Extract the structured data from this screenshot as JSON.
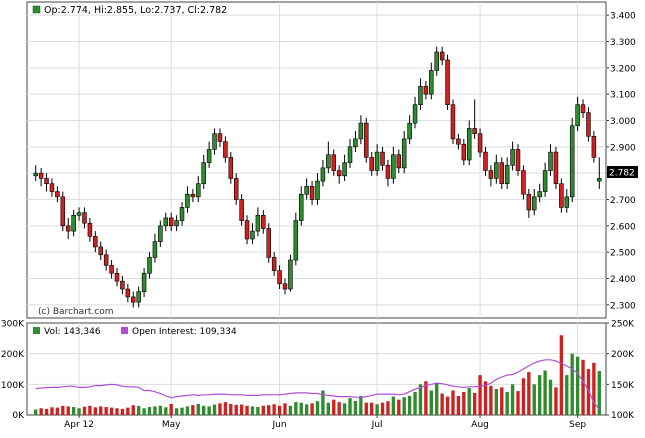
{
  "header": {
    "ohlc_text": "Op:2.774, Hi:2.855, Lo:2.737, Cl:2.782",
    "last_price": "2.782",
    "watermark": "(c) Barchart.com"
  },
  "volume_legend": {
    "vol_text": "Vol: 143,346",
    "oi_text": "Open Interest: 109,334"
  },
  "colors": {
    "up": "#2e8b2e",
    "down": "#cc2222",
    "wick": "#000000",
    "oi_line": "#b04fd6",
    "grid": "#dddddd",
    "frame": "#444444"
  },
  "chart_data": [
    {
      "type": "candlestick",
      "title": "",
      "x_tick_labels": [
        "Apr 12",
        "May",
        "Jun",
        "Jul",
        "Aug",
        "Sep"
      ],
      "x_tick_index": [
        8,
        25,
        45,
        63,
        82,
        100
      ],
      "y_ticks": [
        2.3,
        2.4,
        2.5,
        2.6,
        2.7,
        2.8,
        2.9,
        3.0,
        3.1,
        3.2,
        3.3,
        3.4
      ],
      "y_tick_labels": [
        "2.300",
        "2.400",
        "2.500",
        "2.600",
        "2.700",
        "2.800",
        "2.900",
        "3.000",
        "3.100",
        "3.200",
        "3.300",
        "3.400"
      ],
      "ylim": [
        2.25,
        3.45
      ],
      "grid": true,
      "close": [
        2.8,
        2.78,
        2.76,
        2.73,
        2.71,
        2.6,
        2.58,
        2.64,
        2.65,
        2.61,
        2.56,
        2.52,
        2.49,
        2.45,
        2.42,
        2.39,
        2.36,
        2.33,
        2.31,
        2.35,
        2.42,
        2.48,
        2.54,
        2.6,
        2.63,
        2.6,
        2.62,
        2.67,
        2.72,
        2.71,
        2.76,
        2.84,
        2.89,
        2.95,
        2.92,
        2.86,
        2.78,
        2.7,
        2.62,
        2.55,
        2.58,
        2.64,
        2.59,
        2.48,
        2.43,
        2.38,
        2.36,
        2.47,
        2.62,
        2.72,
        2.75,
        2.7,
        2.77,
        2.82,
        2.87,
        2.81,
        2.79,
        2.84,
        2.9,
        2.93,
        2.99,
        2.86,
        2.81,
        2.88,
        2.83,
        2.78,
        2.87,
        2.82,
        2.93,
        2.99,
        3.06,
        3.13,
        3.1,
        3.19,
        3.26,
        3.23,
        3.06,
        2.93,
        2.91,
        2.85,
        2.97,
        2.95,
        2.88,
        2.81,
        2.78,
        2.84,
        2.76,
        2.83,
        2.89,
        2.81,
        2.72,
        2.66,
        2.71,
        2.73,
        2.81,
        2.88,
        2.76,
        2.67,
        2.71,
        2.98,
        3.06,
        3.03,
        2.94,
        2.86,
        2.78
      ],
      "open": [
        2.79,
        2.8,
        2.78,
        2.76,
        2.73,
        2.71,
        2.6,
        2.58,
        2.64,
        2.65,
        2.61,
        2.56,
        2.52,
        2.49,
        2.45,
        2.42,
        2.39,
        2.36,
        2.33,
        2.31,
        2.35,
        2.42,
        2.48,
        2.54,
        2.6,
        2.63,
        2.6,
        2.62,
        2.67,
        2.72,
        2.71,
        2.76,
        2.84,
        2.89,
        2.95,
        2.92,
        2.86,
        2.78,
        2.7,
        2.62,
        2.55,
        2.58,
        2.64,
        2.59,
        2.48,
        2.43,
        2.38,
        2.36,
        2.47,
        2.62,
        2.72,
        2.75,
        2.7,
        2.77,
        2.82,
        2.87,
        2.81,
        2.79,
        2.84,
        2.9,
        2.93,
        2.99,
        2.86,
        2.81,
        2.88,
        2.83,
        2.78,
        2.87,
        2.82,
        2.93,
        2.99,
        3.06,
        3.13,
        3.1,
        3.19,
        3.26,
        3.23,
        3.06,
        2.93,
        2.91,
        2.85,
        2.97,
        2.95,
        2.88,
        2.81,
        2.78,
        2.84,
        2.76,
        2.83,
        2.89,
        2.81,
        2.72,
        2.66,
        2.71,
        2.73,
        2.81,
        2.88,
        2.76,
        2.67,
        2.71,
        2.98,
        3.06,
        3.03,
        2.94,
        2.77
      ],
      "high": [
        2.83,
        2.82,
        2.8,
        2.78,
        2.75,
        2.73,
        2.63,
        2.66,
        2.67,
        2.67,
        2.63,
        2.58,
        2.54,
        2.51,
        2.47,
        2.44,
        2.41,
        2.38,
        2.35,
        2.37,
        2.44,
        2.5,
        2.57,
        2.62,
        2.65,
        2.65,
        2.64,
        2.69,
        2.75,
        2.74,
        2.79,
        2.87,
        2.92,
        2.97,
        2.97,
        2.94,
        2.88,
        2.8,
        2.72,
        2.64,
        2.61,
        2.67,
        2.66,
        2.61,
        2.5,
        2.45,
        2.4,
        2.49,
        2.65,
        2.75,
        2.78,
        2.77,
        2.8,
        2.85,
        2.92,
        2.89,
        2.83,
        2.87,
        2.93,
        2.96,
        3.02,
        3.01,
        2.88,
        2.91,
        2.9,
        2.85,
        2.9,
        2.89,
        2.96,
        3.02,
        3.09,
        3.16,
        3.15,
        3.22,
        3.28,
        3.28,
        3.25,
        3.08,
        2.95,
        2.93,
        3.0,
        3.08,
        2.97,
        2.9,
        2.83,
        2.87,
        2.86,
        2.86,
        2.92,
        2.91,
        2.83,
        2.74,
        2.74,
        2.76,
        2.84,
        2.91,
        2.9,
        2.78,
        2.74,
        3.01,
        3.09,
        3.08,
        3.05,
        2.96,
        2.86
      ],
      "low": [
        2.77,
        2.75,
        2.73,
        2.71,
        2.69,
        2.58,
        2.55,
        2.56,
        2.62,
        2.59,
        2.54,
        2.5,
        2.47,
        2.43,
        2.4,
        2.37,
        2.34,
        2.31,
        2.29,
        2.29,
        2.33,
        2.4,
        2.46,
        2.52,
        2.58,
        2.58,
        2.58,
        2.6,
        2.65,
        2.69,
        2.69,
        2.74,
        2.82,
        2.87,
        2.9,
        2.84,
        2.76,
        2.68,
        2.6,
        2.53,
        2.53,
        2.56,
        2.57,
        2.46,
        2.41,
        2.36,
        2.34,
        2.35,
        2.45,
        2.6,
        2.7,
        2.68,
        2.68,
        2.75,
        2.8,
        2.79,
        2.76,
        2.77,
        2.82,
        2.88,
        2.91,
        2.84,
        2.79,
        2.79,
        2.81,
        2.75,
        2.76,
        2.8,
        2.8,
        2.91,
        2.97,
        3.04,
        3.08,
        3.08,
        3.17,
        3.21,
        3.04,
        2.91,
        2.89,
        2.83,
        2.83,
        2.93,
        2.86,
        2.79,
        2.75,
        2.76,
        2.74,
        2.74,
        2.81,
        2.79,
        2.7,
        2.63,
        2.64,
        2.69,
        2.71,
        2.79,
        2.74,
        2.65,
        2.65,
        2.69,
        2.96,
        3.01,
        2.92,
        2.84,
        2.74
      ]
    },
    {
      "type": "bar",
      "title": "",
      "y_ticks": [
        0,
        100000,
        200000,
        300000
      ],
      "y_tick_labels": [
        "0K",
        "100K",
        "200K",
        "300K"
      ],
      "ylim": [
        0,
        300000
      ],
      "y2_ticks": [
        100000,
        150000,
        200000,
        250000
      ],
      "y2_tick_labels": [
        "100K",
        "150K",
        "200K",
        "250K"
      ],
      "y2lim": [
        100000,
        250000
      ],
      "series": [
        {
          "name": "Vol",
          "values": [
            18000,
            22000,
            20000,
            25000,
            24000,
            30000,
            28000,
            26000,
            22000,
            27000,
            30000,
            25000,
            28000,
            26000,
            24000,
            22000,
            20000,
            24000,
            32000,
            30000,
            22000,
            26000,
            28000,
            30000,
            25000,
            36000,
            22000,
            24000,
            28000,
            32000,
            36000,
            30000,
            28000,
            34000,
            38000,
            42000,
            36000,
            33000,
            34000,
            30000,
            28000,
            26000,
            30000,
            32000,
            35000,
            30000,
            38000,
            30000,
            42000,
            40000,
            35000,
            38000,
            45000,
            80000,
            40000,
            50000,
            42000,
            38000,
            55000,
            46000,
            62000,
            40000,
            40000,
            35000,
            40000,
            45000,
            60000,
            50000,
            58000,
            62000,
            75000,
            100000,
            110000,
            80000,
            105000,
            70000,
            60000,
            80000,
            62000,
            75000,
            88000,
            72000,
            130000,
            110000,
            95000,
            85000,
            90000,
            75000,
            100000,
            78000,
            120000,
            140000,
            100000,
            130000,
            145000,
            115000,
            90000,
            260000,
            130000,
            200000,
            190000,
            180000,
            150000,
            170000,
            143346
          ]
        },
        {
          "name": "Open Interest",
          "values": [
            143000,
            144000,
            144500,
            145000,
            145000,
            146000,
            147000,
            147000,
            145000,
            145000,
            146000,
            148000,
            148000,
            149000,
            150000,
            149000,
            147000,
            146000,
            146000,
            145000,
            140000,
            140000,
            138000,
            135000,
            131000,
            128000,
            130000,
            131000,
            132000,
            133000,
            132000,
            133000,
            133000,
            134000,
            134000,
            134000,
            133000,
            133000,
            133000,
            132000,
            132000,
            132000,
            133000,
            133000,
            133000,
            133000,
            134000,
            135000,
            136000,
            136000,
            136000,
            135000,
            135000,
            133000,
            132000,
            131000,
            130000,
            130000,
            130000,
            129000,
            128000,
            130000,
            132000,
            134000,
            134000,
            134000,
            134000,
            133000,
            134000,
            138000,
            142000,
            145000,
            148000,
            150000,
            152000,
            151000,
            149000,
            147000,
            146000,
            145000,
            146000,
            146000,
            147000,
            148000,
            152000,
            158000,
            162000,
            165000,
            166000,
            170000,
            175000,
            180000,
            185000,
            188000,
            190000,
            190000,
            188000,
            184000,
            180000,
            175000,
            168000,
            155000,
            140000,
            120000,
            109334
          ]
        }
      ]
    }
  ]
}
